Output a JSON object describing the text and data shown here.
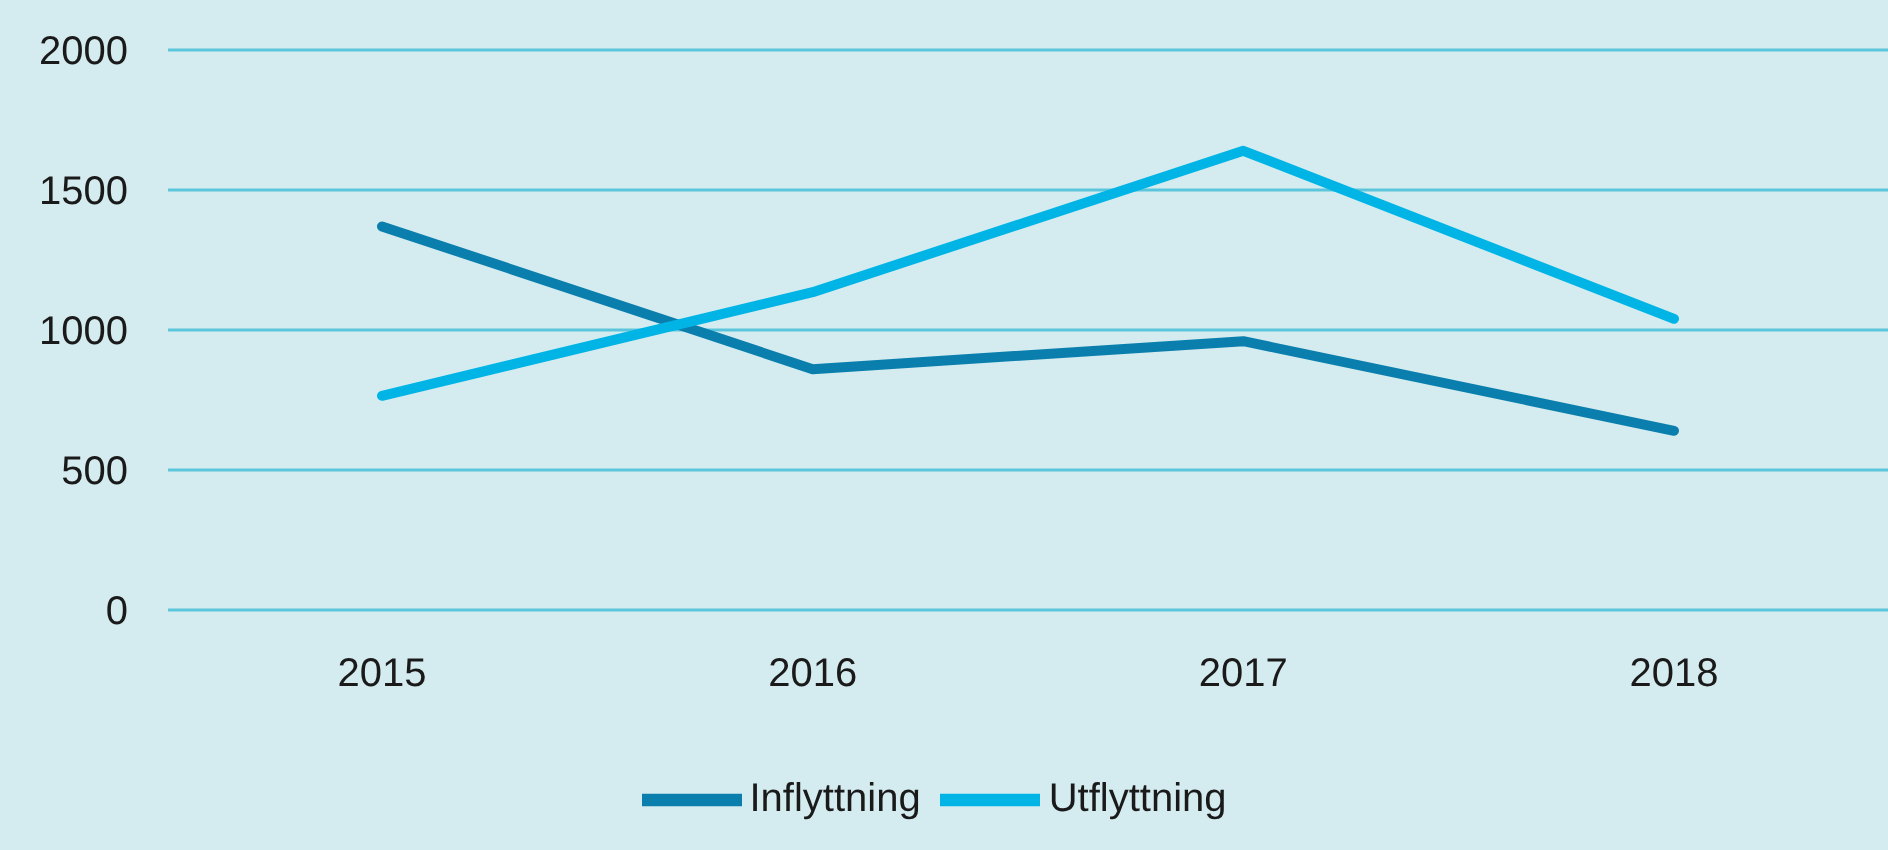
{
  "chart_data": {
    "type": "line",
    "categories": [
      "2015",
      "2016",
      "2017",
      "2018"
    ],
    "series": [
      {
        "name": "Inflyttning",
        "color": "#0a7fae",
        "values": [
          1370,
          860,
          960,
          640
        ]
      },
      {
        "name": "Utflyttning",
        "color": "#00b4e6",
        "values": [
          765,
          1135,
          1640,
          1040
        ]
      }
    ],
    "ylim": [
      0,
      2000
    ],
    "yticks": [
      0,
      500,
      1000,
      1500,
      2000
    ],
    "grid": "y",
    "legend": "bottom",
    "marker": "none",
    "line_style": "solid"
  }
}
